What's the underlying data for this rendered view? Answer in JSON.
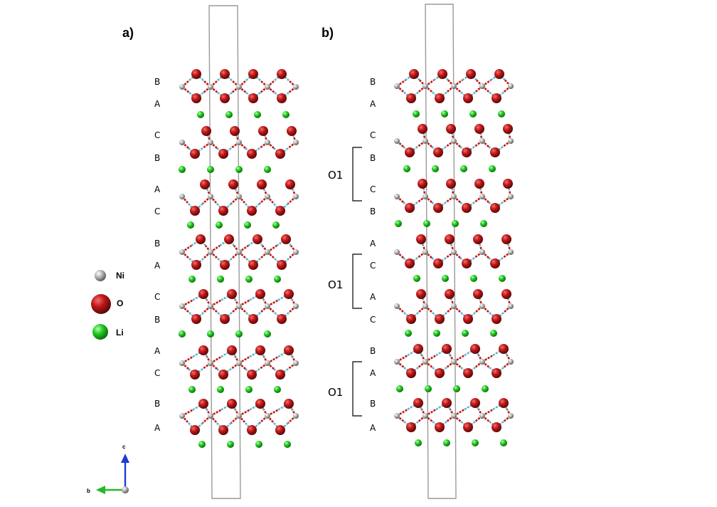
{
  "panel_a": {
    "label": "a)",
    "stacking": [
      "B",
      "A",
      "C",
      "B",
      "A",
      "C",
      "B",
      "A",
      "C",
      "B",
      "A",
      "C",
      "B",
      "A"
    ]
  },
  "panel_b": {
    "label": "b)",
    "stacking": [
      "B",
      "A",
      "C",
      "B",
      "C",
      "B",
      "A",
      "C",
      "A",
      "C",
      "B",
      "A",
      "B",
      "A"
    ],
    "brackets": [
      "O1",
      "O1",
      "O1"
    ]
  },
  "legend": [
    {
      "label": "Ni",
      "color": "#a8a8a8"
    },
    {
      "label": "O",
      "color": "#c21a1a"
    },
    {
      "label": "Li",
      "color": "#22cc22"
    }
  ],
  "axes": {
    "c_label": "c",
    "b_label": "b",
    "c_color": "#1f3bd6",
    "b_color": "#22bb22"
  }
}
